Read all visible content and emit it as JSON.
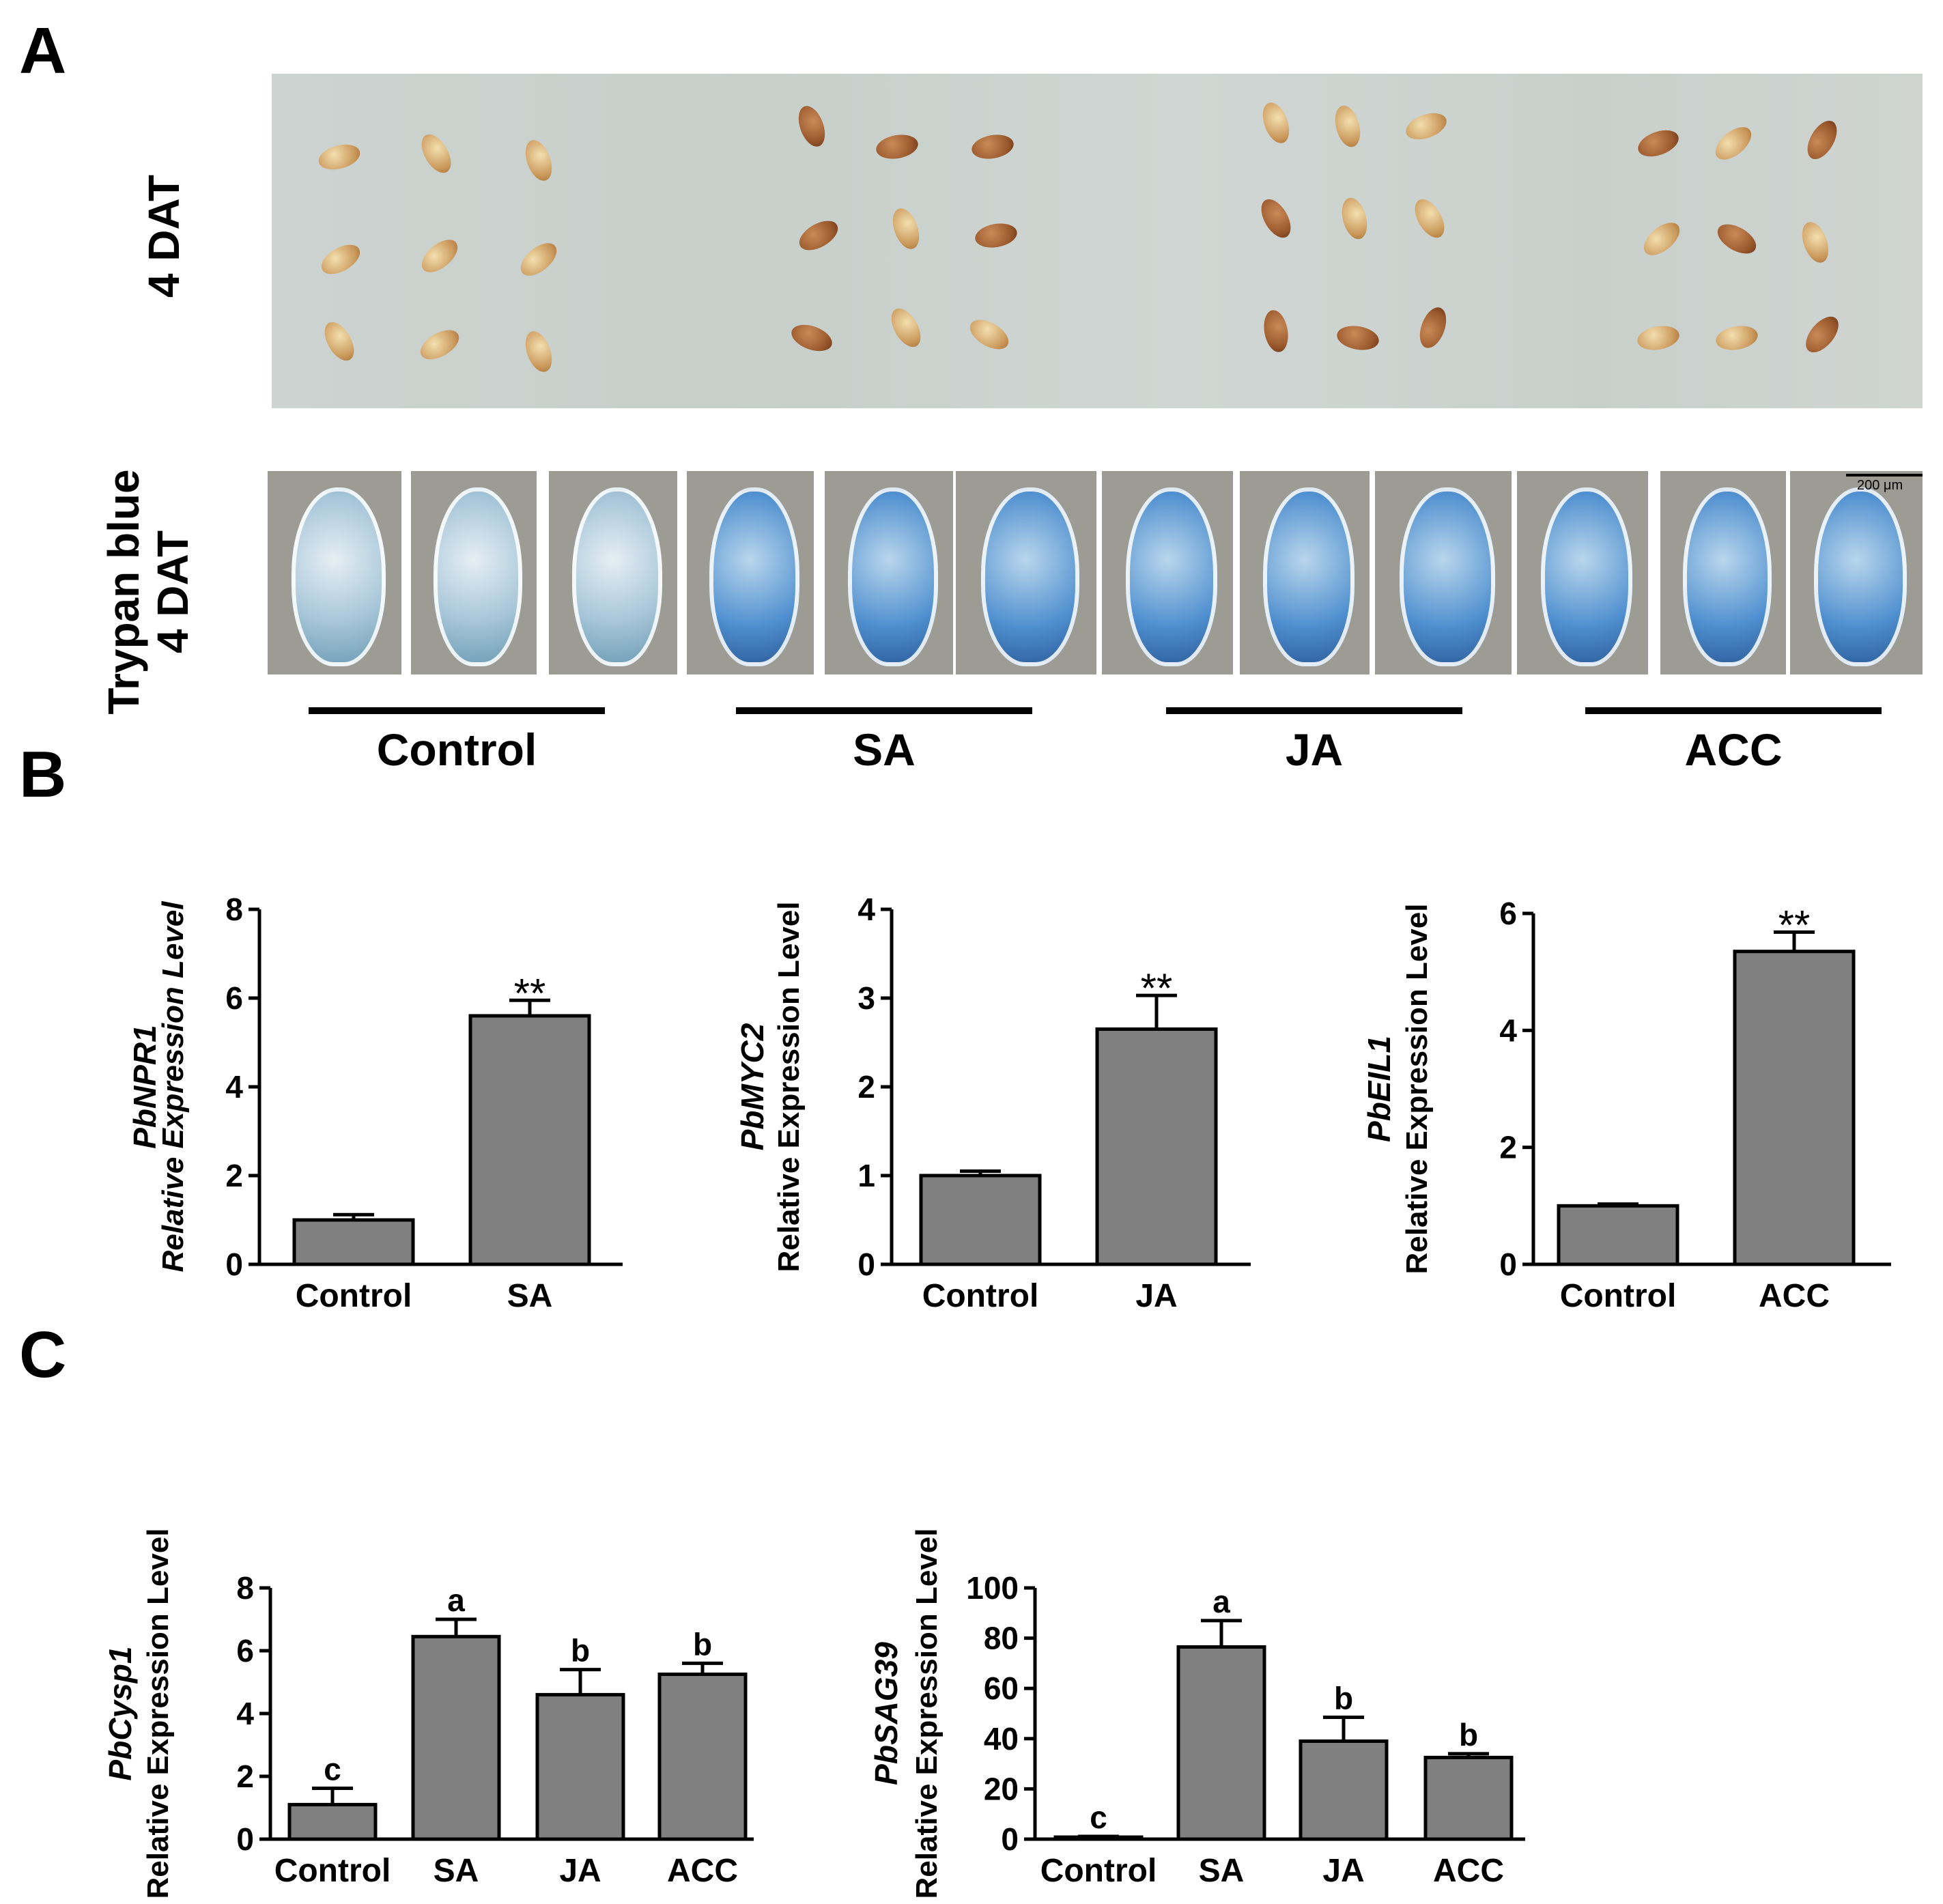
{
  "panels": {
    "a": "A",
    "b": "B",
    "c": "C"
  },
  "panelA": {
    "row1_label": "4 DAT",
    "row2_label_line1": "Trypan blue",
    "row2_label_line2": "4 DAT",
    "scalebar": "200 μm",
    "groups": [
      "Control",
      "SA",
      "JA",
      "ACC"
    ]
  },
  "chart_data": [
    {
      "type": "bar",
      "panel": "B",
      "categories": [
        "Control",
        "SA"
      ],
      "values": [
        1.0,
        5.6
      ],
      "errors": [
        0.12,
        0.35
      ],
      "annotations": [
        "",
        "**"
      ],
      "ylabel_gene": "PbNPR1",
      "ylabel": "Relative Expression Level",
      "ylim": [
        0,
        8
      ],
      "yticks": [
        0,
        2,
        4,
        6,
        8
      ],
      "ylabel_italic": true
    },
    {
      "type": "bar",
      "panel": "B",
      "categories": [
        "Control",
        "JA"
      ],
      "values": [
        1.0,
        2.65
      ],
      "errors": [
        0.05,
        0.38
      ],
      "annotations": [
        "",
        "**"
      ],
      "ylabel_gene": "PbMYC2",
      "ylabel": "Relative Expression Level",
      "ylim": [
        0,
        4
      ],
      "yticks": [
        0,
        1,
        2,
        3,
        4
      ],
      "ylabel_italic": false
    },
    {
      "type": "bar",
      "panel": "B",
      "categories": [
        "Control",
        "ACC"
      ],
      "values": [
        1.0,
        5.35
      ],
      "errors": [
        0.03,
        0.33
      ],
      "annotations": [
        "",
        "**"
      ],
      "ylabel_gene": "PbEIL1",
      "ylabel": "Relative Expression Level",
      "ylim": [
        0,
        6
      ],
      "yticks": [
        0,
        2,
        4,
        6
      ],
      "ylabel_italic": false
    },
    {
      "type": "bar",
      "panel": "C",
      "categories": [
        "Control",
        "SA",
        "JA",
        "ACC"
      ],
      "values": [
        1.1,
        6.45,
        4.6,
        5.25
      ],
      "errors": [
        0.52,
        0.55,
        0.8,
        0.35
      ],
      "annotations": [
        "c",
        "a",
        "b",
        "b"
      ],
      "ylabel_gene": "PbCysp1",
      "ylabel": "Relative Expression Level",
      "ylim": [
        0,
        8
      ],
      "yticks": [
        0,
        2,
        4,
        6,
        8
      ],
      "ylabel_italic": false
    },
    {
      "type": "bar",
      "panel": "C",
      "categories": [
        "Control",
        "SA",
        "JA",
        "ACC"
      ],
      "values": [
        0.8,
        76.5,
        39.0,
        32.5
      ],
      "errors": [
        0.3,
        10.5,
        9.5,
        1.5
      ],
      "annotations": [
        "c",
        "a",
        "b",
        "b"
      ],
      "ylabel_gene": "PbSAG39",
      "ylabel": "Relative Expression Level",
      "ylim": [
        0,
        100
      ],
      "yticks": [
        0,
        20,
        40,
        60,
        80,
        100
      ],
      "ylabel_italic": false
    }
  ]
}
